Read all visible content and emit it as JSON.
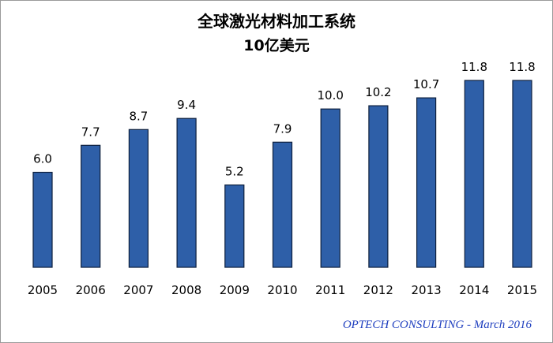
{
  "chart_data": {
    "type": "bar",
    "title": "全球激光材料加工系统",
    "subtitle": "10亿美元",
    "categories": [
      "2005",
      "2006",
      "2007",
      "2008",
      "2009",
      "2010",
      "2011",
      "2012",
      "2013",
      "2014",
      "2015"
    ],
    "values": [
      6.0,
      7.7,
      8.7,
      9.4,
      5.2,
      7.9,
      10.0,
      10.2,
      10.7,
      11.8,
      11.8
    ],
    "value_labels": [
      "6.0",
      "7.7",
      "8.7",
      "9.4",
      "5.2",
      "7.9",
      "10.0",
      "10.2",
      "10.7",
      "11.8",
      "11.8"
    ],
    "ylim": [
      0,
      11.8
    ],
    "grid": false,
    "bar_color": "#2e5fa8",
    "bar_edge_color": "#0d1f3c"
  },
  "source": "OPTECH CONSULTING - March 2016"
}
